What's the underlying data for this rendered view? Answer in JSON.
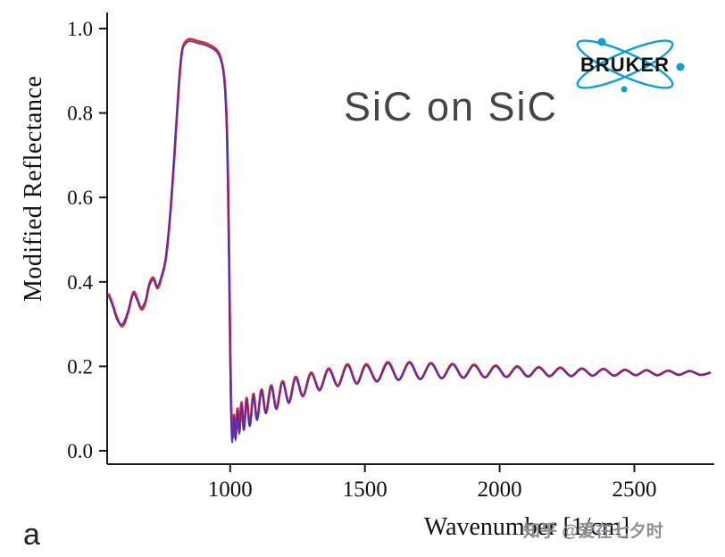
{
  "figure": {
    "panel_label": "a"
  },
  "logo": {
    "text": "BRUKER",
    "accent": "#0e9fd8",
    "text_color": "#121212"
  },
  "watermark": {
    "text": "知乎 @爱在七夕时",
    "color": "#8e8e96"
  },
  "chart_data": {
    "type": "line",
    "title": "SiC on SiC",
    "xlabel": "Wavenumber [1/cm]",
    "ylabel": "Modified Reflectance",
    "xlim": [
      550,
      2780
    ],
    "ylim": [
      0.0,
      1.0
    ],
    "x_ticks": [
      "1000",
      "1500",
      "2000",
      "2500"
    ],
    "y_ticks": [
      "0.0",
      "0.2",
      "0.4",
      "0.6",
      "0.8",
      "1.0"
    ],
    "grid": false,
    "legend": "none",
    "axis_color": "#1a1a1a",
    "x": [
      550,
      565,
      580,
      600,
      620,
      640,
      655,
      670,
      685,
      700,
      715,
      730,
      745,
      760,
      775,
      790,
      800,
      810,
      820,
      830,
      850,
      880,
      910,
      940,
      955,
      965,
      975,
      982,
      988,
      992,
      996,
      1000,
      1004,
      1008,
      1014,
      1020,
      1027,
      1034,
      1042,
      1051,
      1061,
      1073,
      1086,
      1100,
      1116,
      1133,
      1152,
      1172,
      1194,
      1218,
      1243,
      1270,
      1300,
      1332,
      1365,
      1400,
      1435,
      1470,
      1505,
      1545,
      1585,
      1625,
      1665,
      1705,
      1745,
      1785,
      1825,
      1865,
      1905,
      1945,
      1985,
      2025,
      2065,
      2105,
      2145,
      2185,
      2225,
      2265,
      2305,
      2345,
      2385,
      2425,
      2465,
      2505,
      2545,
      2585,
      2625,
      2665,
      2705,
      2745,
      2780
    ],
    "series": [
      {
        "name": "spectrum-red",
        "color": "#dd2a2a",
        "width": 2.8,
        "opacity": 1,
        "values": [
          0.37,
          0.345,
          0.315,
          0.295,
          0.325,
          0.375,
          0.36,
          0.335,
          0.35,
          0.395,
          0.41,
          0.385,
          0.41,
          0.45,
          0.54,
          0.67,
          0.77,
          0.87,
          0.94,
          0.965,
          0.975,
          0.97,
          0.965,
          0.955,
          0.945,
          0.93,
          0.9,
          0.85,
          0.76,
          0.64,
          0.46,
          0.25,
          0.1,
          0.03,
          0.085,
          0.03,
          0.1,
          0.045,
          0.115,
          0.05,
          0.125,
          0.06,
          0.135,
          0.075,
          0.145,
          0.09,
          0.155,
          0.1,
          0.165,
          0.115,
          0.175,
          0.13,
          0.185,
          0.145,
          0.195,
          0.155,
          0.205,
          0.16,
          0.205,
          0.165,
          0.21,
          0.168,
          0.21,
          0.17,
          0.208,
          0.172,
          0.206,
          0.173,
          0.204,
          0.174,
          0.202,
          0.175,
          0.2,
          0.176,
          0.198,
          0.177,
          0.197,
          0.177,
          0.195,
          0.178,
          0.194,
          0.178,
          0.192,
          0.179,
          0.191,
          0.179,
          0.19,
          0.18,
          0.189,
          0.18,
          0.185
        ]
      },
      {
        "name": "spectrum-blue",
        "color": "#3a2fc8",
        "width": 1.7,
        "opacity": 0.9,
        "values": [
          0.365,
          0.34,
          0.31,
          0.3,
          0.33,
          0.37,
          0.355,
          0.34,
          0.355,
          0.39,
          0.405,
          0.39,
          0.415,
          0.455,
          0.545,
          0.675,
          0.775,
          0.875,
          0.945,
          0.96,
          0.97,
          0.965,
          0.96,
          0.95,
          0.94,
          0.925,
          0.895,
          0.84,
          0.74,
          0.6,
          0.42,
          0.18,
          0.06,
          0.02,
          0.08,
          0.025,
          0.095,
          0.04,
          0.11,
          0.05,
          0.12,
          0.058,
          0.13,
          0.072,
          0.142,
          0.088,
          0.152,
          0.098,
          0.162,
          0.112,
          0.172,
          0.128,
          0.182,
          0.142,
          0.192,
          0.152,
          0.202,
          0.158,
          0.202,
          0.163,
          0.207,
          0.167,
          0.208,
          0.169,
          0.206,
          0.171,
          0.204,
          0.172,
          0.202,
          0.173,
          0.2,
          0.174,
          0.198,
          0.175,
          0.197,
          0.176,
          0.196,
          0.176,
          0.194,
          0.177,
          0.193,
          0.177,
          0.191,
          0.178,
          0.19,
          0.178,
          0.189,
          0.179,
          0.188,
          0.179,
          0.184
        ]
      }
    ]
  }
}
